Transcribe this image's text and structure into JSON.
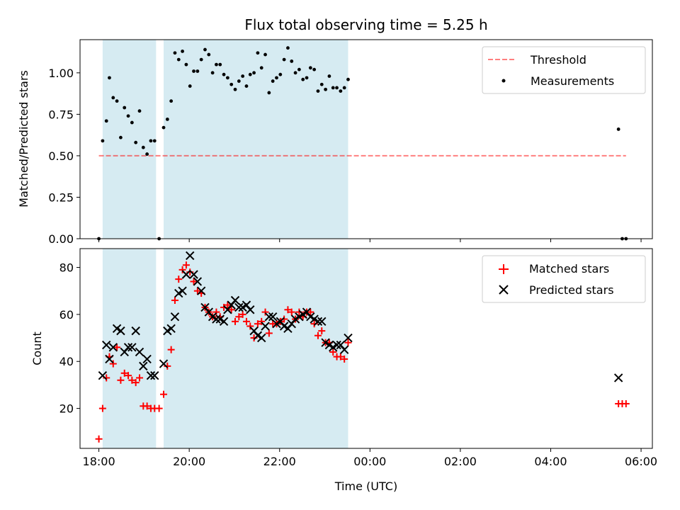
{
  "colors": {
    "band": "#add8e6",
    "threshold": "#ff0000",
    "measurement": "#000000",
    "matched": "#ff0000",
    "predicted": "#000000"
  },
  "chart_data": [
    {
      "type": "scatter",
      "panel": "top",
      "title": "Flux total observing time = 5.25 h",
      "xlabel": "",
      "ylabel": "Matched/Predicted stars",
      "xlim": [
        "17:35",
        "06:15"
      ],
      "ylim": [
        0,
        1.2
      ],
      "yticks": [
        0.0,
        0.25,
        0.5,
        0.75,
        1.0
      ],
      "ytick_labels": [
        "0.00",
        "0.25",
        "0.50",
        "0.75",
        "1.00"
      ],
      "xticks": [
        "18:00",
        "20:00",
        "22:00",
        "00:00",
        "02:00",
        "04:00",
        "06:00"
      ],
      "legend_position": "top-right",
      "shaded_intervals": [
        [
          "18:05",
          "19:16"
        ],
        [
          "19:26",
          "23:31"
        ]
      ],
      "threshold": {
        "name": "Threshold",
        "value": 0.5,
        "x_range": [
          "18:00",
          "05:40"
        ],
        "style": "dashed"
      },
      "series": [
        {
          "name": "Measurements",
          "points": [
            [
              "18:00",
              0.0
            ],
            [
              "18:05",
              0.59
            ],
            [
              "18:10",
              0.71
            ],
            [
              "18:14",
              0.97
            ],
            [
              "18:19",
              0.85
            ],
            [
              "18:24",
              0.83
            ],
            [
              "18:29",
              0.61
            ],
            [
              "18:34",
              0.79
            ],
            [
              "18:39",
              0.74
            ],
            [
              "18:44",
              0.7
            ],
            [
              "18:49",
              0.58
            ],
            [
              "18:54",
              0.77
            ],
            [
              "18:59",
              0.55
            ],
            [
              "19:04",
              0.51
            ],
            [
              "19:09",
              0.59
            ],
            [
              "19:14",
              0.59
            ],
            [
              "19:20",
              0.0
            ],
            [
              "19:26",
              0.67
            ],
            [
              "19:31",
              0.72
            ],
            [
              "19:36",
              0.83
            ],
            [
              "19:41",
              1.12
            ],
            [
              "19:46",
              1.08
            ],
            [
              "19:51",
              1.13
            ],
            [
              "19:56",
              1.05
            ],
            [
              "20:01",
              0.92
            ],
            [
              "20:06",
              1.01
            ],
            [
              "20:11",
              1.01
            ],
            [
              "20:16",
              1.08
            ],
            [
              "20:21",
              1.14
            ],
            [
              "20:26",
              1.11
            ],
            [
              "20:31",
              1.0
            ],
            [
              "20:36",
              1.05
            ],
            [
              "20:41",
              1.05
            ],
            [
              "20:46",
              0.99
            ],
            [
              "20:51",
              0.97
            ],
            [
              "20:56",
              0.93
            ],
            [
              "21:01",
              0.9
            ],
            [
              "21:06",
              0.95
            ],
            [
              "21:11",
              0.98
            ],
            [
              "21:16",
              0.92
            ],
            [
              "21:21",
              0.99
            ],
            [
              "21:26",
              1.0
            ],
            [
              "21:31",
              1.12
            ],
            [
              "21:36",
              1.03
            ],
            [
              "21:41",
              1.11
            ],
            [
              "21:46",
              0.88
            ],
            [
              "21:51",
              0.95
            ],
            [
              "21:56",
              0.97
            ],
            [
              "22:01",
              0.99
            ],
            [
              "22:06",
              1.08
            ],
            [
              "22:11",
              1.15
            ],
            [
              "22:16",
              1.07
            ],
            [
              "22:21",
              1.0
            ],
            [
              "22:26",
              1.02
            ],
            [
              "22:31",
              0.96
            ],
            [
              "22:36",
              0.97
            ],
            [
              "22:41",
              1.03
            ],
            [
              "22:46",
              1.02
            ],
            [
              "22:51",
              0.89
            ],
            [
              "22:56",
              0.93
            ],
            [
              "23:01",
              0.9
            ],
            [
              "23:06",
              0.98
            ],
            [
              "23:11",
              0.91
            ],
            [
              "23:16",
              0.91
            ],
            [
              "23:21",
              0.89
            ],
            [
              "23:26",
              0.91
            ],
            [
              "23:31",
              0.96
            ],
            [
              "05:30",
              0.66
            ],
            [
              "05:35",
              0.0
            ],
            [
              "05:40",
              0.0
            ]
          ]
        }
      ]
    },
    {
      "type": "scatter",
      "panel": "bottom",
      "title": "",
      "xlabel": "Time (UTC)",
      "ylabel": "Count",
      "xlim": [
        "17:35",
        "06:15"
      ],
      "ylim": [
        3,
        88
      ],
      "yticks": [
        20,
        40,
        60,
        80
      ],
      "xticks": [
        "18:00",
        "20:00",
        "22:00",
        "00:00",
        "02:00",
        "04:00",
        "06:00"
      ],
      "legend_position": "top-right",
      "shaded_intervals": [
        [
          "18:05",
          "19:16"
        ],
        [
          "19:26",
          "23:31"
        ]
      ],
      "series": [
        {
          "name": "Matched stars",
          "marker": "plus",
          "points": [
            [
              "18:00",
              7
            ],
            [
              "18:05",
              20
            ],
            [
              "18:10",
              33
            ],
            [
              "18:14",
              42
            ],
            [
              "18:19",
              39
            ],
            [
              "18:24",
              46
            ],
            [
              "18:29",
              32
            ],
            [
              "18:34",
              35
            ],
            [
              "18:39",
              34
            ],
            [
              "18:44",
              32
            ],
            [
              "18:49",
              31
            ],
            [
              "18:54",
              33
            ],
            [
              "18:59",
              21
            ],
            [
              "19:04",
              21
            ],
            [
              "19:09",
              20
            ],
            [
              "19:14",
              20
            ],
            [
              "19:20",
              20
            ],
            [
              "19:26",
              26
            ],
            [
              "19:31",
              38
            ],
            [
              "19:36",
              45
            ],
            [
              "19:41",
              66
            ],
            [
              "19:46",
              75
            ],
            [
              "19:51",
              79
            ],
            [
              "19:56",
              81
            ],
            [
              "20:01",
              78
            ],
            [
              "20:06",
              74
            ],
            [
              "20:11",
              70
            ],
            [
              "20:16",
              69
            ],
            [
              "20:21",
              63
            ],
            [
              "20:26",
              61
            ],
            [
              "20:31",
              59
            ],
            [
              "20:36",
              61
            ],
            [
              "20:41",
              59
            ],
            [
              "20:46",
              63
            ],
            [
              "20:51",
              64
            ],
            [
              "20:56",
              62
            ],
            [
              "21:01",
              57
            ],
            [
              "21:06",
              59
            ],
            [
              "21:11",
              60
            ],
            [
              "21:16",
              57
            ],
            [
              "21:21",
              55
            ],
            [
              "21:26",
              50
            ],
            [
              "21:31",
              56
            ],
            [
              "21:36",
              57
            ],
            [
              "21:41",
              61
            ],
            [
              "21:46",
              52
            ],
            [
              "21:51",
              56
            ],
            [
              "21:56",
              56
            ],
            [
              "22:01",
              57
            ],
            [
              "22:06",
              58
            ],
            [
              "22:11",
              62
            ],
            [
              "22:16",
              61
            ],
            [
              "22:21",
              58
            ],
            [
              "22:26",
              61
            ],
            [
              "22:31",
              59
            ],
            [
              "22:36",
              61
            ],
            [
              "22:41",
              61
            ],
            [
              "22:46",
              56
            ],
            [
              "22:51",
              51
            ],
            [
              "22:56",
              53
            ],
            [
              "23:01",
              48
            ],
            [
              "23:06",
              48
            ],
            [
              "23:11",
              44
            ],
            [
              "23:16",
              42
            ],
            [
              "23:21",
              42
            ],
            [
              "23:26",
              41
            ],
            [
              "23:31",
              48
            ],
            [
              "05:30",
              22
            ],
            [
              "05:35",
              22
            ],
            [
              "05:40",
              22
            ]
          ]
        },
        {
          "name": "Predicted stars",
          "marker": "x",
          "points": [
            [
              "18:05",
              34
            ],
            [
              "18:10",
              47
            ],
            [
              "18:14",
              41
            ],
            [
              "18:19",
              46
            ],
            [
              "18:24",
              54
            ],
            [
              "18:29",
              53
            ],
            [
              "18:34",
              44
            ],
            [
              "18:39",
              46
            ],
            [
              "18:44",
              46
            ],
            [
              "18:49",
              53
            ],
            [
              "18:54",
              44
            ],
            [
              "18:59",
              38
            ],
            [
              "19:04",
              41
            ],
            [
              "19:09",
              34
            ],
            [
              "19:14",
              34
            ],
            [
              "19:26",
              39
            ],
            [
              "19:31",
              53
            ],
            [
              "19:36",
              54
            ],
            [
              "19:41",
              59
            ],
            [
              "19:46",
              69
            ],
            [
              "19:51",
              70
            ],
            [
              "19:56",
              77
            ],
            [
              "20:01",
              85
            ],
            [
              "20:06",
              77
            ],
            [
              "20:11",
              74
            ],
            [
              "20:16",
              70
            ],
            [
              "20:21",
              63
            ],
            [
              "20:26",
              61
            ],
            [
              "20:31",
              59
            ],
            [
              "20:36",
              58
            ],
            [
              "20:41",
              58
            ],
            [
              "20:46",
              57
            ],
            [
              "20:51",
              62
            ],
            [
              "20:56",
              64
            ],
            [
              "21:01",
              66
            ],
            [
              "21:06",
              63
            ],
            [
              "21:11",
              63
            ],
            [
              "21:16",
              64
            ],
            [
              "21:21",
              62
            ],
            [
              "21:26",
              53
            ],
            [
              "21:31",
              51
            ],
            [
              "21:36",
              50
            ],
            [
              "21:41",
              55
            ],
            [
              "21:46",
              59
            ],
            [
              "21:51",
              59
            ],
            [
              "21:56",
              56
            ],
            [
              "22:01",
              57
            ],
            [
              "22:06",
              55
            ],
            [
              "22:11",
              54
            ],
            [
              "22:16",
              56
            ],
            [
              "22:21",
              58
            ],
            [
              "22:26",
              59
            ],
            [
              "22:31",
              60
            ],
            [
              "22:36",
              61
            ],
            [
              "22:41",
              59
            ],
            [
              "22:46",
              58
            ],
            [
              "22:51",
              57
            ],
            [
              "22:56",
              57
            ],
            [
              "23:01",
              48
            ],
            [
              "23:06",
              47
            ],
            [
              "23:11",
              46
            ],
            [
              "23:16",
              47
            ],
            [
              "23:21",
              47
            ],
            [
              "23:26",
              45
            ],
            [
              "23:31",
              50
            ],
            [
              "05:30",
              33
            ]
          ]
        }
      ]
    }
  ]
}
